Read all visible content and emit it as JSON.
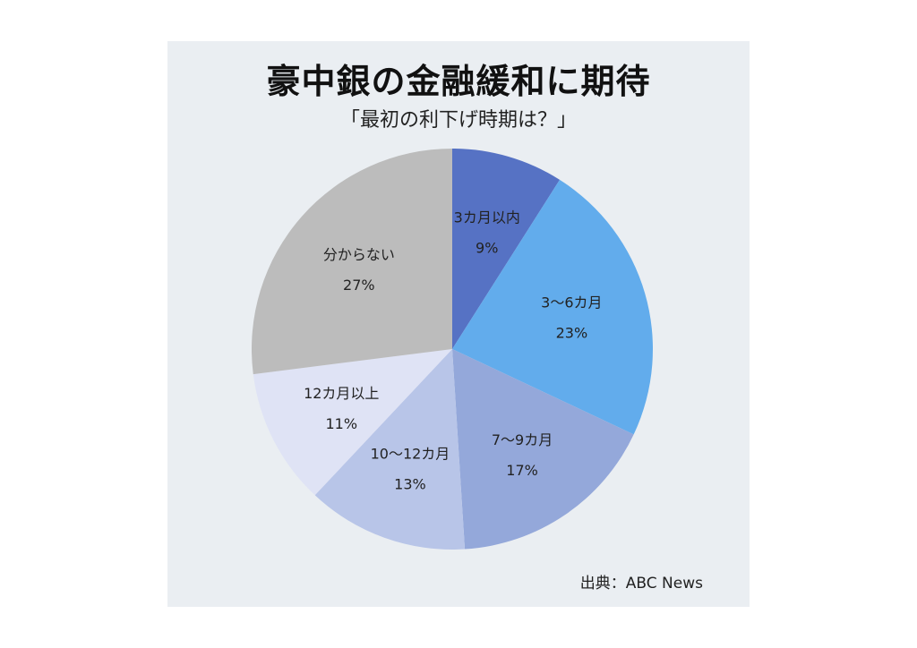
{
  "header": {
    "title": "豪中銀の金融緩和に期待",
    "subtitle": "「最初の利下げ時期は？」"
  },
  "footer": {
    "source": "出典：ABC News"
  },
  "chart_data": {
    "type": "pie",
    "title": "豪中銀の金融緩和に期待",
    "subtitle": "「最初の利下げ時期は？」",
    "start_direction": "12 o'clock, clockwise",
    "slices": [
      {
        "label": "3カ月以内",
        "value": 9,
        "value_label": "9%",
        "color": "#5672c4"
      },
      {
        "label": "3～6カ月",
        "value": 23,
        "value_label": "23%",
        "color": "#62acec"
      },
      {
        "label": "7～9カ月",
        "value": 17,
        "value_label": "17%",
        "color": "#94a8da"
      },
      {
        "label": "10～12カ月",
        "value": 13,
        "value_label": "13%",
        "color": "#b8c5e8"
      },
      {
        "label": "12カ月以上",
        "value": 11,
        "value_label": "11%",
        "color": "#dfe3f5"
      },
      {
        "label": "分からない",
        "value": 27,
        "value_label": "27%",
        "color": "#bcbcbc"
      }
    ]
  }
}
